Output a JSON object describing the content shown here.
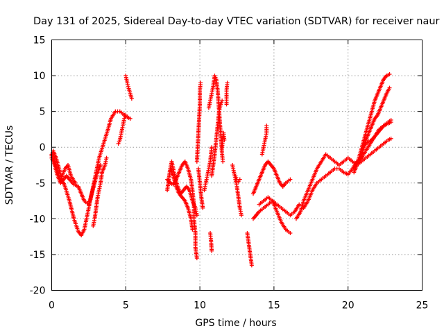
{
  "chart_data": {
    "type": "scatter",
    "title": "Day 131 of 2025, Sidereal Day-to-day VTEC variation (SDTVAR) for receiver naur",
    "xlabel": "GPS time / hours",
    "ylabel": "SDTVAR / TECUs",
    "xlim": [
      0,
      25
    ],
    "ylim": [
      -20,
      15
    ],
    "xticks": [
      "0",
      "5",
      "10",
      "15",
      "20",
      "25"
    ],
    "yticks": [
      "-20",
      "-15",
      "-10",
      "-5",
      "0",
      "5",
      "10",
      "15"
    ],
    "grid": true,
    "marker": "plus",
    "color": "#ff0000",
    "series": [
      {
        "points": [
          [
            0.0,
            -1.2
          ],
          [
            0.1,
            -0.5
          ],
          [
            0.3,
            -1.5
          ],
          [
            0.5,
            -3.0
          ],
          [
            0.7,
            -4.5
          ],
          [
            0.9,
            -5.5
          ],
          [
            1.2,
            -7.5
          ],
          [
            1.5,
            -10.0
          ],
          [
            1.8,
            -11.8
          ],
          [
            2.0,
            -12.3
          ],
          [
            2.2,
            -11.5
          ],
          [
            2.4,
            -9.5
          ],
          [
            2.6,
            -7.5
          ],
          [
            2.8,
            -5.5
          ],
          [
            3.0,
            -3.5
          ],
          [
            3.2,
            -1.5
          ],
          [
            3.5,
            0.5
          ],
          [
            3.8,
            2.5
          ],
          [
            4.0,
            4.0
          ],
          [
            4.3,
            5.0
          ],
          [
            4.6,
            5.0
          ],
          [
            4.9,
            4.5
          ],
          [
            5.1,
            4.2
          ],
          [
            5.3,
            4.0
          ]
        ]
      },
      {
        "points": [
          [
            0.0,
            -1.5
          ],
          [
            0.2,
            -2.5
          ],
          [
            0.4,
            -4.0
          ],
          [
            0.6,
            -5.0
          ],
          [
            0.8,
            -4.5
          ],
          [
            1.0,
            -4.0
          ],
          [
            1.2,
            -4.5
          ],
          [
            1.5,
            -5.2
          ],
          [
            1.8,
            -5.5
          ],
          [
            2.0,
            -6.5
          ],
          [
            2.2,
            -7.5
          ],
          [
            2.5,
            -8.0
          ],
          [
            2.7,
            -6.5
          ],
          [
            2.9,
            -5.0
          ],
          [
            3.1,
            -3.5
          ],
          [
            3.3,
            -2.5
          ]
        ]
      },
      {
        "points": [
          [
            0.0,
            -1.0
          ],
          [
            0.2,
            -2.0
          ],
          [
            0.4,
            -3.5
          ],
          [
            0.6,
            -4.5
          ],
          [
            0.9,
            -3.0
          ],
          [
            1.1,
            -2.5
          ],
          [
            1.3,
            -4.0
          ],
          [
            1.6,
            -5.0
          ]
        ]
      },
      {
        "points": [
          [
            2.8,
            -11.0
          ],
          [
            2.9,
            -10.0
          ],
          [
            3.0,
            -8.5
          ],
          [
            3.1,
            -7.0
          ],
          [
            3.2,
            -6.0
          ],
          [
            3.3,
            -5.0
          ],
          [
            3.4,
            -3.5
          ],
          [
            3.6,
            -2.5
          ],
          [
            3.7,
            -1.5
          ]
        ]
      },
      {
        "points": [
          [
            4.5,
            0.5
          ],
          [
            4.6,
            1.0
          ],
          [
            4.7,
            2.0
          ],
          [
            4.8,
            3.0
          ],
          [
            4.9,
            4.0
          ],
          [
            5.0,
            4.5
          ]
        ]
      },
      {
        "points": [
          [
            5.0,
            10.0
          ],
          [
            5.1,
            9.0
          ],
          [
            5.2,
            8.2
          ],
          [
            5.3,
            7.5
          ],
          [
            5.4,
            6.8
          ]
        ]
      },
      {
        "points": [
          [
            7.8,
            -6.0
          ],
          [
            7.9,
            -4.5
          ],
          [
            8.0,
            -3.0
          ],
          [
            8.1,
            -2.0
          ],
          [
            8.3,
            -4.0
          ],
          [
            8.5,
            -5.5
          ],
          [
            8.7,
            -6.5
          ],
          [
            8.9,
            -6.0
          ],
          [
            9.1,
            -5.5
          ],
          [
            9.3,
            -6.0
          ],
          [
            9.5,
            -7.5
          ],
          [
            9.7,
            -8.5
          ],
          [
            9.8,
            -9.5
          ]
        ]
      },
      {
        "points": [
          [
            7.8,
            -4.5
          ],
          [
            8.0,
            -5.0
          ],
          [
            8.2,
            -5.2
          ],
          [
            8.4,
            -4.5
          ],
          [
            8.6,
            -3.5
          ],
          [
            8.8,
            -2.5
          ],
          [
            9.0,
            -2.0
          ],
          [
            9.2,
            -3.0
          ],
          [
            9.4,
            -4.5
          ],
          [
            9.5,
            -6.0
          ],
          [
            9.6,
            -8.0
          ],
          [
            9.6,
            -10.0
          ],
          [
            9.7,
            -12.0
          ],
          [
            9.7,
            -14.0
          ],
          [
            9.8,
            -15.5
          ]
        ]
      },
      {
        "points": [
          [
            8.0,
            -3.0
          ],
          [
            8.2,
            -4.0
          ],
          [
            8.4,
            -5.5
          ],
          [
            8.6,
            -6.5
          ],
          [
            8.8,
            -7.0
          ],
          [
            9.0,
            -7.5
          ],
          [
            9.2,
            -8.5
          ],
          [
            9.4,
            -10.0
          ],
          [
            9.5,
            -11.5
          ]
        ]
      },
      {
        "points": [
          [
            9.8,
            -2.0
          ],
          [
            9.85,
            0.0
          ],
          [
            9.9,
            2.0
          ],
          [
            9.95,
            4.0
          ],
          [
            10.0,
            6.0
          ],
          [
            10.0,
            8.0
          ],
          [
            10.05,
            9.0
          ]
        ]
      },
      {
        "points": [
          [
            9.9,
            -3.0
          ],
          [
            10.0,
            -5.0
          ],
          [
            10.1,
            -7.0
          ],
          [
            10.2,
            -8.5
          ]
        ]
      },
      {
        "points": [
          [
            10.3,
            -6.0
          ],
          [
            10.4,
            -5.0
          ],
          [
            10.5,
            -4.0
          ],
          [
            10.6,
            -3.0
          ],
          [
            10.7,
            -2.0
          ],
          [
            10.8,
            0.0
          ]
        ]
      },
      {
        "points": [
          [
            10.7,
            -12.0
          ],
          [
            10.75,
            -13.0
          ],
          [
            10.8,
            -14.5
          ]
        ]
      },
      {
        "points": [
          [
            10.6,
            5.5
          ],
          [
            10.7,
            6.5
          ],
          [
            10.8,
            7.5
          ],
          [
            10.9,
            8.5
          ],
          [
            11.0,
            10.0
          ],
          [
            11.1,
            9.5
          ],
          [
            11.2,
            8.0
          ],
          [
            11.25,
            6.5
          ],
          [
            11.3,
            5.0
          ],
          [
            11.35,
            3.5
          ],
          [
            11.4,
            2.0
          ],
          [
            11.45,
            0.5
          ],
          [
            11.5,
            -1.0
          ],
          [
            11.55,
            -2.0
          ]
        ]
      },
      {
        "points": [
          [
            10.8,
            -4.0
          ],
          [
            10.9,
            -2.5
          ],
          [
            11.0,
            -1.0
          ],
          [
            11.1,
            1.0
          ],
          [
            11.2,
            3.0
          ],
          [
            11.3,
            5.0
          ],
          [
            11.4,
            6.0
          ],
          [
            11.5,
            6.5
          ]
        ]
      },
      {
        "points": [
          [
            11.5,
            0.0
          ],
          [
            11.55,
            1.0
          ],
          [
            11.6,
            2.0
          ],
          [
            11.65,
            1.0
          ]
        ]
      },
      {
        "points": [
          [
            11.8,
            6.0
          ],
          [
            11.8,
            7.0
          ],
          [
            11.8,
            8.0
          ],
          [
            11.85,
            9.0
          ]
        ]
      },
      {
        "points": [
          [
            12.2,
            -2.5
          ],
          [
            12.3,
            -3.5
          ],
          [
            12.4,
            -4.5
          ],
          [
            12.5,
            -5.5
          ],
          [
            12.6,
            -7.0
          ],
          [
            12.7,
            -8.5
          ],
          [
            12.8,
            -9.5
          ]
        ]
      },
      {
        "points": [
          [
            12.4,
            -4.0
          ],
          [
            12.5,
            -4.5
          ],
          [
            12.6,
            -4.8
          ],
          [
            12.7,
            -4.5
          ]
        ]
      },
      {
        "points": [
          [
            13.2,
            -12.0
          ],
          [
            13.3,
            -13.5
          ],
          [
            13.4,
            -15.0
          ],
          [
            13.5,
            -16.5
          ]
        ]
      },
      {
        "points": [
          [
            13.6,
            -6.5
          ],
          [
            13.8,
            -5.5
          ],
          [
            14.0,
            -4.5
          ],
          [
            14.2,
            -3.5
          ],
          [
            14.4,
            -2.5
          ],
          [
            14.6,
            -2.0
          ],
          [
            14.8,
            -2.5
          ],
          [
            15.0,
            -3.0
          ],
          [
            15.2,
            -4.0
          ],
          [
            15.4,
            -5.0
          ],
          [
            15.6,
            -5.5
          ],
          [
            15.8,
            -5.0
          ],
          [
            16.1,
            -4.5
          ]
        ]
      },
      {
        "points": [
          [
            13.6,
            -10.0
          ],
          [
            13.8,
            -9.5
          ],
          [
            14.0,
            -9.0
          ],
          [
            14.3,
            -8.5
          ],
          [
            14.6,
            -8.0
          ],
          [
            14.9,
            -7.5
          ],
          [
            15.2,
            -8.0
          ],
          [
            15.5,
            -8.5
          ],
          [
            15.8,
            -9.0
          ],
          [
            16.1,
            -9.5
          ],
          [
            16.4,
            -9.0
          ],
          [
            16.7,
            -8.0
          ]
        ]
      },
      {
        "points": [
          [
            14.0,
            -8.0
          ],
          [
            14.3,
            -7.5
          ],
          [
            14.6,
            -7.0
          ],
          [
            14.9,
            -7.5
          ],
          [
            15.2,
            -9.0
          ],
          [
            15.5,
            -10.5
          ],
          [
            15.8,
            -11.5
          ],
          [
            16.1,
            -12.0
          ]
        ]
      },
      {
        "points": [
          [
            14.2,
            -1.0
          ],
          [
            14.3,
            0.0
          ],
          [
            14.4,
            1.0
          ],
          [
            14.5,
            2.0
          ],
          [
            14.5,
            3.0
          ]
        ]
      },
      {
        "points": [
          [
            16.5,
            -10.0
          ],
          [
            16.8,
            -9.0
          ],
          [
            17.0,
            -7.5
          ],
          [
            17.3,
            -6.0
          ],
          [
            17.6,
            -4.5
          ],
          [
            17.9,
            -3.0
          ],
          [
            18.2,
            -2.0
          ],
          [
            18.5,
            -1.0
          ],
          [
            18.8,
            -1.5
          ],
          [
            19.1,
            -2.0
          ],
          [
            19.4,
            -2.5
          ],
          [
            19.7,
            -2.0
          ],
          [
            20.0,
            -1.5
          ],
          [
            20.3,
            -2.0
          ],
          [
            20.6,
            -2.5
          ],
          [
            20.9,
            -2.0
          ],
          [
            21.2,
            -1.5
          ],
          [
            21.5,
            -1.0
          ],
          [
            21.8,
            -0.5
          ],
          [
            22.1,
            0.0
          ],
          [
            22.4,
            0.5
          ],
          [
            22.7,
            1.0
          ],
          [
            22.9,
            1.2
          ]
        ]
      },
      {
        "points": [
          [
            17.0,
            -8.5
          ],
          [
            17.3,
            -7.5
          ],
          [
            17.6,
            -6.0
          ],
          [
            17.9,
            -5.0
          ],
          [
            18.2,
            -4.5
          ],
          [
            18.5,
            -4.0
          ],
          [
            18.8,
            -3.5
          ],
          [
            19.1,
            -3.0
          ],
          [
            19.4,
            -3.0
          ],
          [
            19.7,
            -3.5
          ],
          [
            20.0,
            -3.8
          ],
          [
            20.3,
            -3.0
          ],
          [
            20.6,
            -2.0
          ],
          [
            20.9,
            -1.5
          ],
          [
            21.2,
            -0.5
          ],
          [
            21.5,
            0.5
          ],
          [
            21.8,
            1.5
          ],
          [
            22.1,
            2.5
          ],
          [
            22.4,
            3.0
          ],
          [
            22.7,
            3.5
          ],
          [
            22.9,
            3.8
          ]
        ]
      },
      {
        "points": [
          [
            20.4,
            -3.5
          ],
          [
            20.6,
            -2.5
          ],
          [
            20.8,
            -1.0
          ],
          [
            21.0,
            0.5
          ],
          [
            21.2,
            2.0
          ],
          [
            21.4,
            3.5
          ],
          [
            21.6,
            5.0
          ],
          [
            21.8,
            6.5
          ],
          [
            22.0,
            7.5
          ],
          [
            22.2,
            8.5
          ],
          [
            22.4,
            9.5
          ],
          [
            22.6,
            10.0
          ],
          [
            22.8,
            10.2
          ]
        ]
      },
      {
        "points": [
          [
            20.8,
            -2.0
          ],
          [
            21.0,
            -0.5
          ],
          [
            21.2,
            1.0
          ],
          [
            21.4,
            2.0
          ],
          [
            21.6,
            3.0
          ],
          [
            21.8,
            4.0
          ],
          [
            22.0,
            4.5
          ],
          [
            22.2,
            5.5
          ],
          [
            22.4,
            6.5
          ],
          [
            22.6,
            7.5
          ],
          [
            22.8,
            8.3
          ]
        ]
      },
      {
        "points": [
          [
            21.0,
            0.0
          ],
          [
            21.2,
            0.5
          ],
          [
            21.4,
            0.8
          ],
          [
            21.6,
            1.0
          ],
          [
            21.8,
            1.5
          ],
          [
            22.0,
            2.0
          ],
          [
            22.2,
            2.5
          ],
          [
            22.4,
            3.0
          ],
          [
            22.6,
            3.2
          ],
          [
            22.9,
            3.5
          ]
        ]
      }
    ]
  }
}
